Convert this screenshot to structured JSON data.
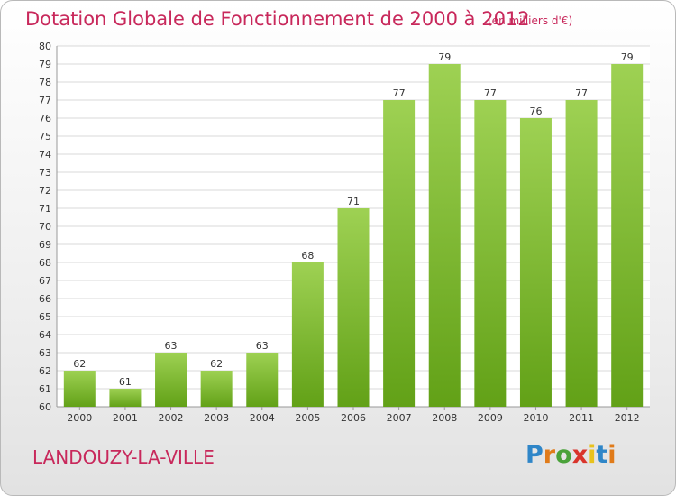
{
  "header": {
    "title": "Dotation Globale de Fonctionnement de 2000 à 2012",
    "unit": "(en milliers d'€)"
  },
  "footer": {
    "commune": "LANDOUZY-LA-VILLE",
    "logo": "Proxiti"
  },
  "colors": {
    "title": "#c8285b",
    "bar_top": "#9ed153",
    "bar_bottom": "#62a117"
  },
  "chart_data": {
    "type": "bar",
    "categories": [
      "2000",
      "2001",
      "2002",
      "2003",
      "2004",
      "2005",
      "2006",
      "2007",
      "2008",
      "2009",
      "2010",
      "2011",
      "2012"
    ],
    "values": [
      62,
      61,
      63,
      62,
      63,
      68,
      71,
      77,
      79,
      77,
      76,
      77,
      79
    ],
    "data_labels": [
      "62",
      "61",
      "63",
      "62",
      "63",
      "68",
      "71",
      "77",
      "79",
      "77",
      "76",
      "77",
      "79"
    ],
    "yticks": [
      "60",
      "61",
      "62",
      "63",
      "64",
      "65",
      "66",
      "67",
      "68",
      "69",
      "70",
      "71",
      "72",
      "73",
      "74",
      "75",
      "76",
      "77",
      "78",
      "79",
      "80"
    ],
    "ylim": [
      60,
      80
    ],
    "grid": true,
    "title": "Dotation Globale de Fonctionnement de 2000 à 2012",
    "xlabel": "",
    "ylabel": ""
  }
}
